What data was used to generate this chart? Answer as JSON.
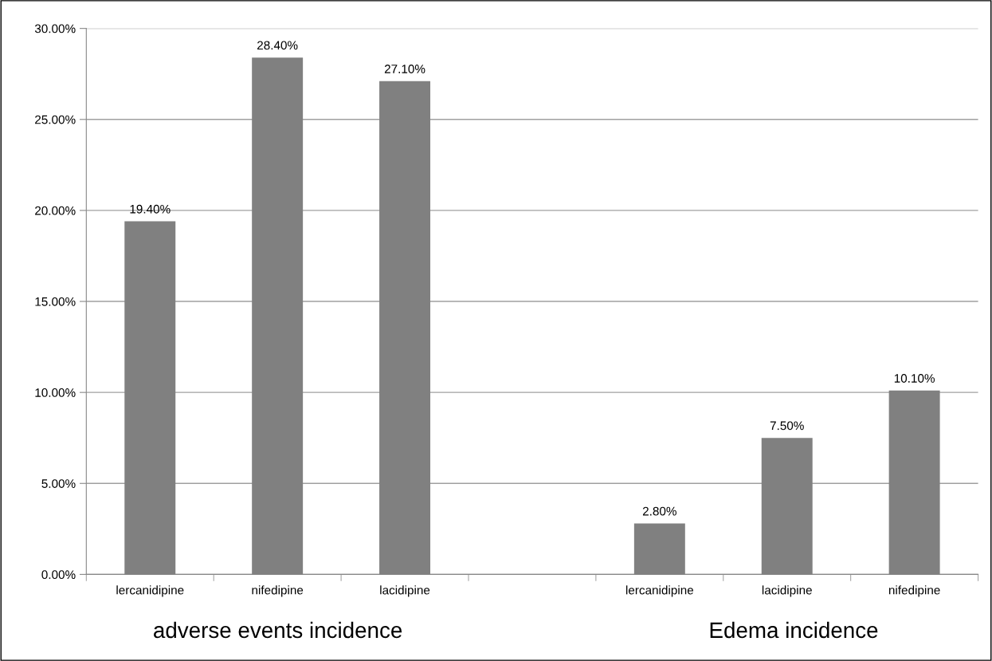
{
  "chart_data": {
    "type": "bar",
    "categories": [
      "lercanidipine",
      "nifedipine",
      "lacidipine",
      null,
      "lercanidipine",
      "lacidipine",
      "nifedipine"
    ],
    "values": [
      19.4,
      28.4,
      27.1,
      null,
      2.8,
      7.5,
      10.1
    ],
    "value_labels": [
      "19.40%",
      "28.40%",
      "27.10%",
      null,
      "2.80%",
      "7.50%",
      "10.10%"
    ],
    "color": "#808080",
    "ylim": [
      0,
      30
    ],
    "yticks": [
      {
        "value": 0,
        "label": "0.00%"
      },
      {
        "value": 5,
        "label": "5.00%"
      },
      {
        "value": 10,
        "label": "10.00%"
      },
      {
        "value": 15,
        "label": "15.00%"
      },
      {
        "value": 20,
        "label": "20.00%"
      },
      {
        "value": 25,
        "label": "25.00%"
      },
      {
        "value": 30,
        "label": "30.00%"
      }
    ],
    "grid": "y",
    "legend": false,
    "annotations": [
      "adverse events incidence",
      "Edema incidence"
    ]
  }
}
